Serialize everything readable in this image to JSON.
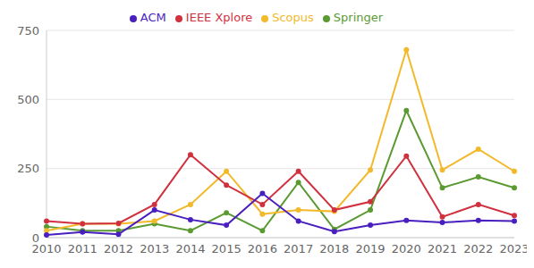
{
  "chart_data": {
    "type": "line",
    "categories": [
      "2010",
      "2011",
      "2012",
      "2013",
      "2014",
      "2015",
      "2016",
      "2017",
      "2018",
      "2019",
      "2020",
      "2021",
      "2022",
      "2023"
    ],
    "series": [
      {
        "name": "Springer",
        "color": "#5b9a32",
        "marker": "circle",
        "values": [
          40,
          25,
          25,
          50,
          25,
          90,
          25,
          200,
          30,
          100,
          460,
          180,
          220,
          180
        ]
      },
      {
        "name": "Scopus",
        "color": "#f2b92b",
        "marker": "circle",
        "values": [
          25,
          50,
          50,
          60,
          120,
          240,
          85,
          100,
          95,
          245,
          680,
          245,
          320,
          240
        ]
      },
      {
        "name": "IEEE Xplore",
        "color": "#d0313f",
        "marker": "circle",
        "values": [
          60,
          50,
          52,
          120,
          300,
          190,
          120,
          240,
          100,
          130,
          295,
          75,
          120,
          80
        ]
      },
      {
        "name": "ACM",
        "color": "#4a1fbf",
        "marker": "circle",
        "values": [
          10,
          20,
          12,
          100,
          65,
          45,
          160,
          60,
          22,
          45,
          62,
          55,
          62,
          60
        ]
      }
    ],
    "ylim": [
      0,
      750
    ],
    "yticks": [
      0,
      250,
      500,
      750
    ],
    "grid": true,
    "legend": "top"
  }
}
